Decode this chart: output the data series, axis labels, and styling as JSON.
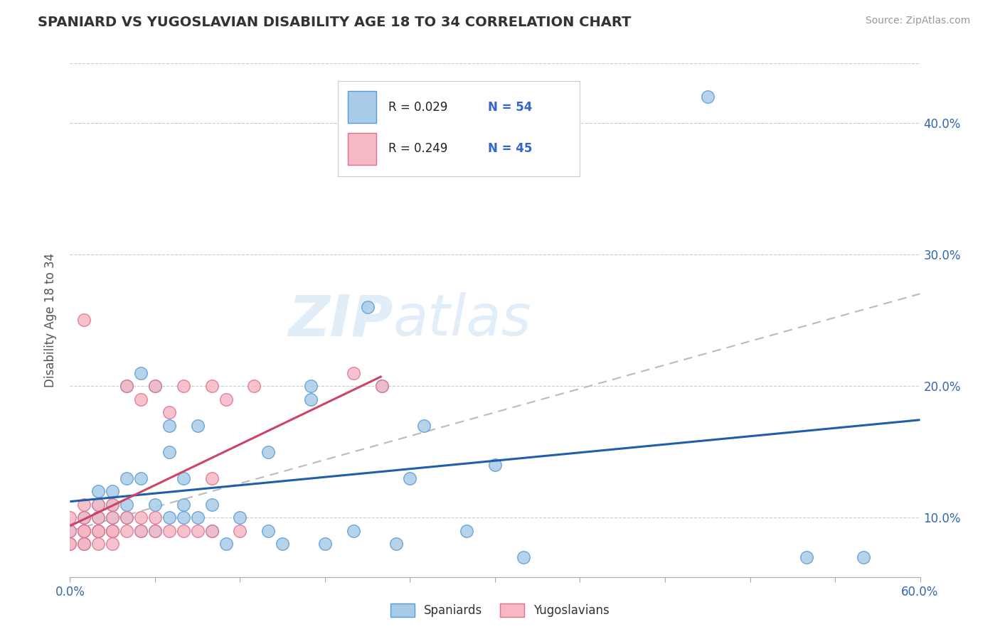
{
  "title": "SPANIARD VS YUGOSLAVIAN DISABILITY AGE 18 TO 34 CORRELATION CHART",
  "source": "Source: ZipAtlas.com",
  "ylabel": "Disability Age 18 to 34",
  "yticks": [
    0.1,
    0.2,
    0.3,
    0.4
  ],
  "ytick_labels": [
    "10.0%",
    "20.0%",
    "30.0%",
    "40.0%"
  ],
  "xmin": 0.0,
  "xmax": 0.6,
  "ymin": 0.055,
  "ymax": 0.445,
  "legend_r1": "R = 0.029",
  "legend_n1": "N = 54",
  "legend_r2": "R = 0.249",
  "legend_n2": "N = 45",
  "spaniard_fill": "#A8CCE8",
  "spaniard_edge": "#5B9BD5",
  "yugoslav_fill": "#F5B8C4",
  "yugoslav_edge": "#E07090",
  "trend_blue": "#1F5FAA",
  "trend_pink": "#CC4466",
  "trend_gray": "#BBBBBB",
  "watermark_color": "#C5DCF0",
  "spaniards_x": [
    0.0,
    0.01,
    0.01,
    0.01,
    0.02,
    0.02,
    0.02,
    0.02,
    0.02,
    0.03,
    0.03,
    0.03,
    0.03,
    0.03,
    0.04,
    0.04,
    0.04,
    0.04,
    0.05,
    0.05,
    0.05,
    0.06,
    0.06,
    0.06,
    0.07,
    0.07,
    0.07,
    0.08,
    0.08,
    0.08,
    0.09,
    0.09,
    0.1,
    0.1,
    0.11,
    0.12,
    0.14,
    0.14,
    0.15,
    0.17,
    0.17,
    0.18,
    0.2,
    0.21,
    0.22,
    0.23,
    0.24,
    0.25,
    0.28,
    0.3,
    0.32,
    0.45,
    0.52,
    0.56
  ],
  "spaniards_y": [
    0.09,
    0.09,
    0.1,
    0.08,
    0.09,
    0.1,
    0.12,
    0.09,
    0.11,
    0.09,
    0.1,
    0.11,
    0.09,
    0.12,
    0.1,
    0.11,
    0.13,
    0.2,
    0.09,
    0.21,
    0.13,
    0.09,
    0.11,
    0.2,
    0.1,
    0.15,
    0.17,
    0.1,
    0.11,
    0.13,
    0.1,
    0.17,
    0.11,
    0.09,
    0.08,
    0.1,
    0.09,
    0.15,
    0.08,
    0.19,
    0.2,
    0.08,
    0.09,
    0.26,
    0.2,
    0.08,
    0.13,
    0.17,
    0.09,
    0.14,
    0.07,
    0.42,
    0.07,
    0.07
  ],
  "yugoslavians_x": [
    0.0,
    0.0,
    0.0,
    0.0,
    0.01,
    0.01,
    0.01,
    0.01,
    0.01,
    0.01,
    0.01,
    0.01,
    0.02,
    0.02,
    0.02,
    0.02,
    0.02,
    0.02,
    0.03,
    0.03,
    0.03,
    0.03,
    0.03,
    0.04,
    0.04,
    0.04,
    0.05,
    0.05,
    0.05,
    0.06,
    0.06,
    0.06,
    0.07,
    0.07,
    0.08,
    0.08,
    0.09,
    0.1,
    0.1,
    0.1,
    0.11,
    0.12,
    0.13,
    0.2,
    0.22
  ],
  "yugoslavians_y": [
    0.09,
    0.08,
    0.08,
    0.1,
    0.09,
    0.09,
    0.08,
    0.1,
    0.11,
    0.09,
    0.08,
    0.25,
    0.09,
    0.1,
    0.09,
    0.08,
    0.11,
    0.09,
    0.09,
    0.09,
    0.1,
    0.11,
    0.08,
    0.09,
    0.1,
    0.2,
    0.09,
    0.1,
    0.19,
    0.09,
    0.2,
    0.1,
    0.09,
    0.18,
    0.09,
    0.2,
    0.09,
    0.2,
    0.09,
    0.13,
    0.19,
    0.09,
    0.2,
    0.21,
    0.2
  ],
  "gray_line_x0": 0.0,
  "gray_line_y0": 0.09,
  "gray_line_x1": 0.6,
  "gray_line_y1": 0.27,
  "num_xticks": 11
}
